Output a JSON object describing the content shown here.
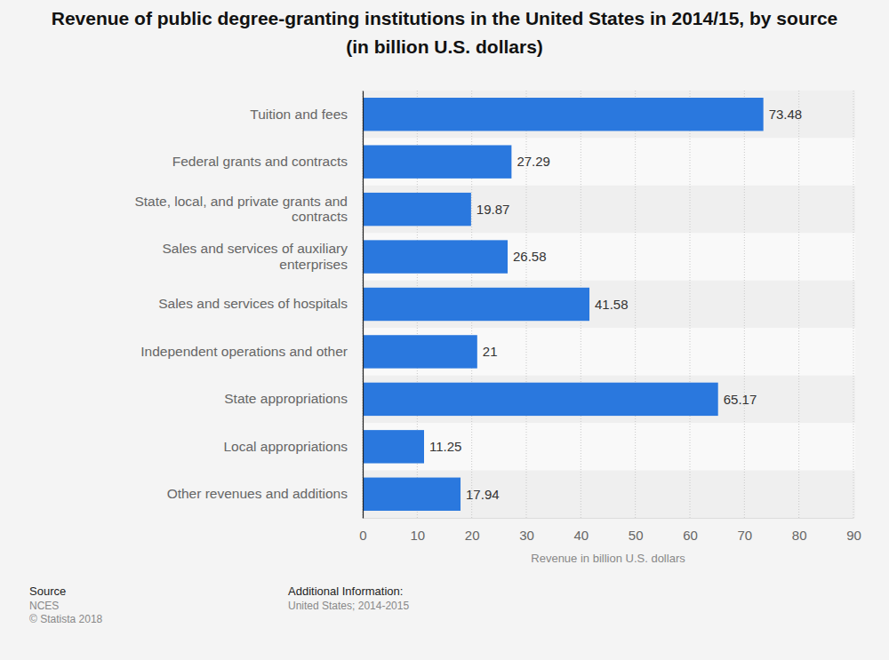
{
  "chart_data": {
    "type": "bar",
    "orientation": "horizontal",
    "title": "Revenue of public degree-granting institutions in the United States in 2014/15, by source (in billion U.S. dollars)",
    "categories": [
      "Tuition and fees",
      "Federal grants and contracts",
      "State, local, and private grants and contracts",
      "Sales and services of auxiliary enterprises",
      "Sales and services of hospitals",
      "Independent operations and other",
      "State appropriations",
      "Local appropriations",
      "Other revenues and additions"
    ],
    "values": [
      73.48,
      27.29,
      19.87,
      26.58,
      41.58,
      21,
      65.17,
      11.25,
      17.94
    ],
    "color": "#2a78de",
    "xlim": [
      0,
      90
    ],
    "xticks": [
      0,
      10,
      20,
      30,
      40,
      50,
      60,
      70,
      80,
      90
    ],
    "x_label": "Revenue in billion U.S. dollars",
    "grid": true,
    "data_labels": true,
    "footer": {
      "source_label": "Source",
      "source": "NCES",
      "copyright": "© Statista 2018",
      "info_label": "Additional Information:",
      "info": "United States; 2014-2015"
    }
  }
}
